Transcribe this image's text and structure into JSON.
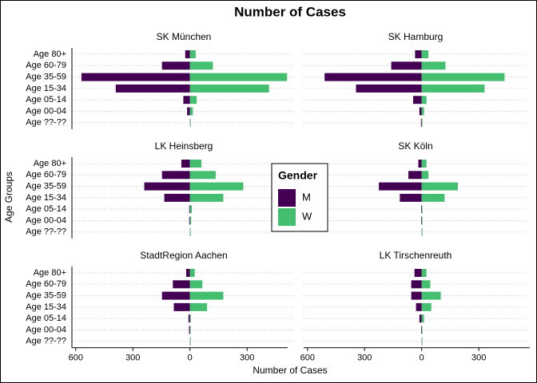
{
  "chart_data": {
    "type": "bar",
    "title": "Number of Cases",
    "x_label": "Number of Cases",
    "y_label": "Age Groups",
    "legend_title": "Gender",
    "legend_position": "center",
    "grid": true,
    "categories": [
      "Age 80+",
      "Age 60-79",
      "Age 35-59",
      "Age 15-34",
      "Age 05-14",
      "Age 00-04",
      "Age ??-??"
    ],
    "series": [
      {
        "name": "M",
        "color": "#440154"
      },
      {
        "name": "W",
        "color": "#44bf70"
      }
    ],
    "xlim": [
      -620,
      555
    ],
    "xticks": [
      {
        "value": -600,
        "label": "600"
      },
      {
        "value": -300,
        "label": "300"
      },
      0,
      300
    ],
    "panels": [
      {
        "title": "SK München",
        "values": [
          [
            -25,
            -147,
            -570,
            -390,
            -35,
            -15,
            0
          ],
          [
            30,
            120,
            510,
            415,
            35,
            15,
            0
          ]
        ]
      },
      {
        "title": "SK Hamburg",
        "values": [
          [
            -35,
            -160,
            -510,
            -345,
            -45,
            -12,
            -4
          ],
          [
            35,
            125,
            435,
            330,
            25,
            12,
            2
          ]
        ]
      },
      {
        "title": "LK Heinsberg",
        "values": [
          [
            -45,
            -147,
            -240,
            -135,
            -4,
            -4,
            0
          ],
          [
            60,
            135,
            280,
            175,
            10,
            6,
            0
          ]
        ]
      },
      {
        "title": "SK Köln",
        "values": [
          [
            -18,
            -70,
            -225,
            -115,
            -3,
            -3,
            0
          ],
          [
            25,
            35,
            190,
            120,
            3,
            3,
            0
          ]
        ]
      },
      {
        "title": "StadtRegion Aachen",
        "values": [
          [
            -20,
            -90,
            -147,
            -85,
            -8,
            -5,
            0
          ],
          [
            25,
            65,
            175,
            90,
            4,
            3,
            0
          ]
        ]
      },
      {
        "title": "LK Tirschenreuth",
        "values": [
          [
            -38,
            -55,
            -55,
            -30,
            -12,
            -3,
            0
          ],
          [
            25,
            45,
            100,
            50,
            12,
            2,
            0
          ]
        ]
      }
    ]
  }
}
